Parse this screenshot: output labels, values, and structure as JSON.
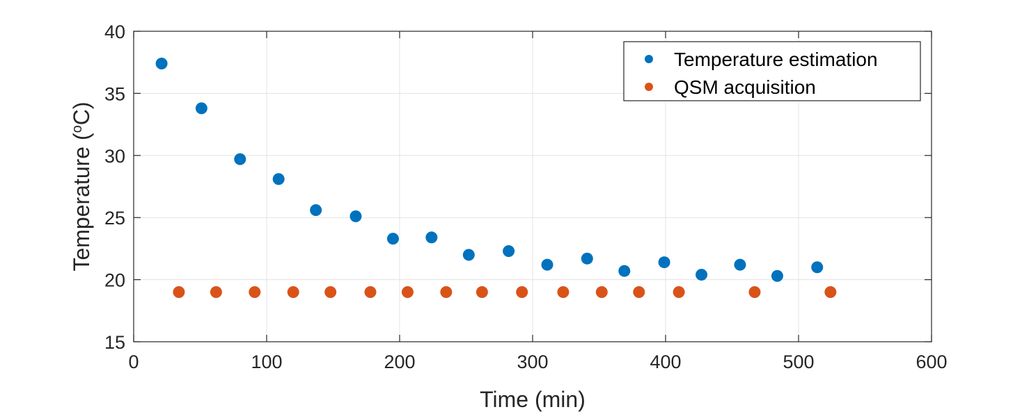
{
  "chart_data": {
    "type": "scatter",
    "xlabel": "Time (min)",
    "ylabel": {
      "main": "Temperature (",
      "sup": "o",
      "unit": "C)"
    },
    "xlim": [
      0,
      600
    ],
    "ylim": [
      15,
      40
    ],
    "xticks": [
      "0",
      "100",
      "200",
      "300",
      "400",
      "500",
      "600"
    ],
    "yticks": [
      "15",
      "20",
      "25",
      "30",
      "35",
      "40"
    ],
    "grid": true,
    "legend_position": "top-right",
    "series": [
      {
        "name": "Temperature estimation",
        "color": "#0072BD",
        "points": [
          [
            21,
            37.4
          ],
          [
            51,
            33.8
          ],
          [
            80,
            29.7
          ],
          [
            109,
            28.1
          ],
          [
            137,
            25.6
          ],
          [
            167,
            25.1
          ],
          [
            195,
            23.3
          ],
          [
            224,
            23.4
          ],
          [
            252,
            22.0
          ],
          [
            282,
            22.3
          ],
          [
            311,
            21.2
          ],
          [
            341,
            21.7
          ],
          [
            369,
            20.7
          ],
          [
            399,
            21.4
          ],
          [
            427,
            20.4
          ],
          [
            456,
            21.2
          ],
          [
            484,
            20.3
          ],
          [
            514,
            21.0
          ]
        ]
      },
      {
        "name": "QSM acquisition",
        "color": "#D95319",
        "points": [
          [
            34,
            19
          ],
          [
            62,
            19
          ],
          [
            91,
            19
          ],
          [
            120,
            19
          ],
          [
            148,
            19
          ],
          [
            178,
            19
          ],
          [
            206,
            19
          ],
          [
            235,
            19
          ],
          [
            262,
            19
          ],
          [
            292,
            19
          ],
          [
            323,
            19
          ],
          [
            352,
            19
          ],
          [
            380,
            19
          ],
          [
            410,
            19
          ],
          [
            467,
            19
          ],
          [
            524,
            19
          ]
        ]
      }
    ]
  }
}
